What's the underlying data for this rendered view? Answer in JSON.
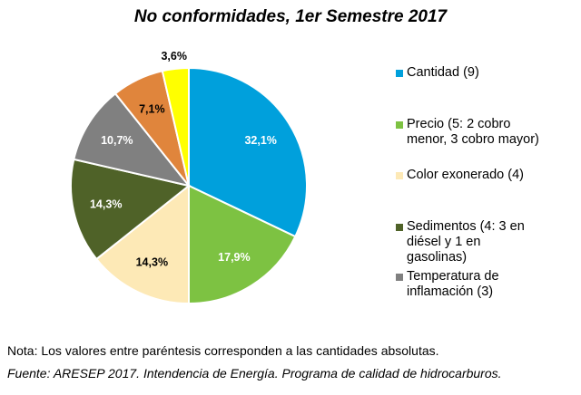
{
  "chart_data": {
    "type": "pie",
    "title": "No conformidades, 1er Semestre 2017",
    "slices": [
      {
        "label": "Cantidad (9)",
        "value": 32.1,
        "value_label": "32,1%",
        "color": "#00a0dc"
      },
      {
        "label": "Precio (5: 2 cobro menor, 3 cobro mayor)",
        "value": 17.9,
        "value_label": "17,9%",
        "color": "#7dc242"
      },
      {
        "label": "Color exonerado (4)",
        "value": 14.3,
        "value_label": "14,3%",
        "color": "#fde9b6"
      },
      {
        "label": "Sedimentos (4: 3 en diésel y 1 en gasolinas)",
        "value": 14.3,
        "value_label": "14,3%",
        "color": "#4f6228"
      },
      {
        "label": "Temperatura de inflamación (3)",
        "value": 10.7,
        "value_label": "10,7%",
        "color": "#808080"
      },
      {
        "label": "",
        "value": 7.1,
        "value_label": "7,1%",
        "color": "#e0853c"
      },
      {
        "label": "",
        "value": 3.6,
        "value_label": "3,6%",
        "color": "#ffff00"
      }
    ],
    "legend_position": "right"
  },
  "legend": {
    "items": [
      {
        "lines": [
          "Cantidad (9)"
        ],
        "color": "#00a0dc"
      },
      {
        "lines": [
          "Precio (5: 2 cobro",
          "menor, 3 cobro mayor)"
        ],
        "color": "#7dc242"
      },
      {
        "lines": [
          "Color exonerado (4)"
        ],
        "color": "#fde9b6"
      },
      {
        "lines": [
          "Sedimentos (4: 3 en",
          "diésel y 1 en",
          "gasolinas)"
        ],
        "color": "#4f6228"
      },
      {
        "lines": [
          "Temperatura de",
          "inflamación (3)"
        ],
        "color": "#808080"
      }
    ]
  },
  "notes": {
    "note": "Nota: Los valores entre paréntesis corresponden a las cantidades absolutas.",
    "source": "Fuente: ARESEP 2017. Intendencia de Energía. Programa de calidad de hidrocarburos."
  }
}
